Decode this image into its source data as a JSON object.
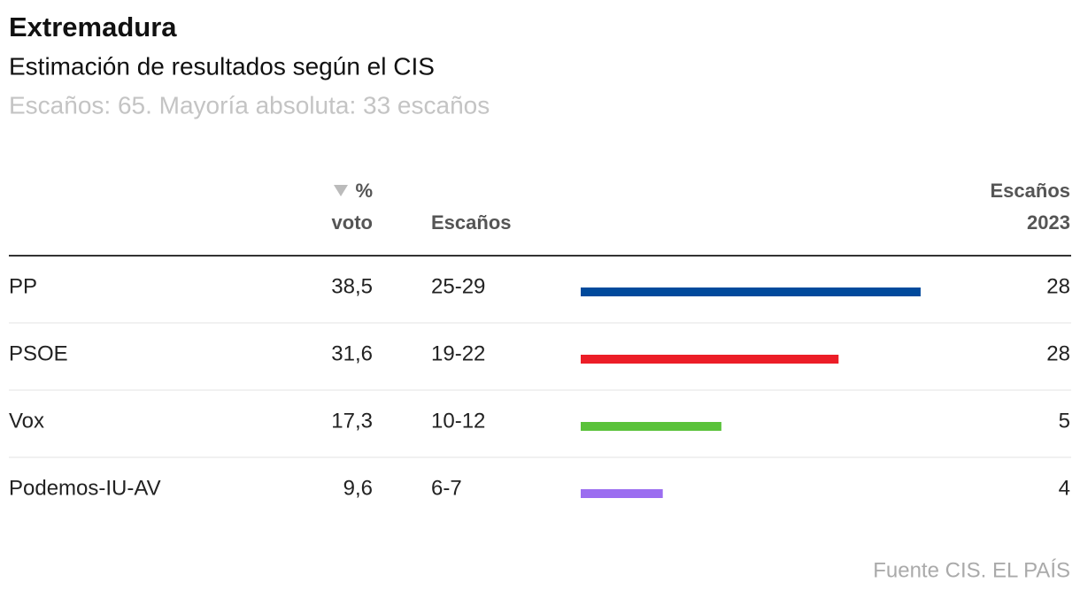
{
  "header": {
    "title": "Extremadura",
    "subtitle": "Estimación de resultados según el CIS",
    "note": "Escaños: 65. Mayoría absoluta: 33 escaños"
  },
  "table": {
    "columns": {
      "vote_top": "%",
      "vote_bottom": "voto",
      "seats": "Escaños",
      "prev_top": "Escaños",
      "prev_bottom": "2023"
    },
    "rows": [
      {
        "party": "PP",
        "vote": "38,5",
        "seats": "25-29",
        "seats_max": 29,
        "color": "#004a9c",
        "prev": "28"
      },
      {
        "party": "PSOE",
        "vote": "31,6",
        "seats": "19-22",
        "seats_max": 22,
        "color": "#ec1d27",
        "prev": "28"
      },
      {
        "party": "Vox",
        "vote": "17,3",
        "seats": "10-12",
        "seats_max": 12,
        "color": "#5ac23a",
        "prev": "5"
      },
      {
        "party": "Podemos-IU-AV",
        "vote": "9,6",
        "seats": "6-7",
        "seats_max": 7,
        "color": "#9b6df0",
        "prev": "4"
      }
    ]
  },
  "source": "Fuente CIS. EL PAÍS"
}
